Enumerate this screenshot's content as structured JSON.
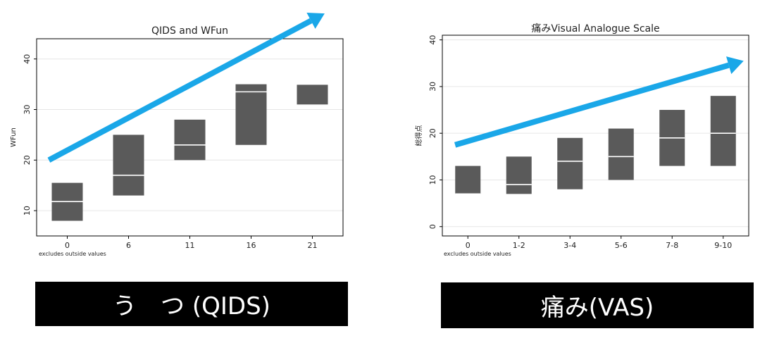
{
  "colors": {
    "box": "#5a5a5a",
    "median": "#ffffff",
    "arrow": "#1aa7e8",
    "plot_border": "#000000",
    "grid": "#e6e6e6",
    "banner_bg": "#000000",
    "banner_text": "#ffffff"
  },
  "chart_data": [
    {
      "type": "box",
      "title": "QIDS and WFun",
      "ylabel": "WFun",
      "xlabel": "",
      "note": "excludes outside values",
      "ylim": [
        5,
        44
      ],
      "yticks": [
        10,
        20,
        30,
        40
      ],
      "grid": true,
      "categories": [
        "0",
        "6",
        "11",
        "16",
        "21"
      ],
      "boxes": [
        {
          "q1": 8,
          "median": 11.8,
          "q3": 15.5
        },
        {
          "q1": 13,
          "median": 17,
          "q3": 25
        },
        {
          "q1": 20,
          "median": 23,
          "q3": 28
        },
        {
          "q1": 23,
          "median": 33.5,
          "q3": 35
        },
        {
          "q1": 31,
          "median": 35,
          "q3": 35
        }
      ],
      "trend_arrow": {
        "from": [
          -0.3,
          20
        ],
        "to": [
          4.2,
          49
        ]
      }
    },
    {
      "type": "box",
      "title": "痛みVisual Analogue Scale",
      "ylabel": "総得点",
      "xlabel": "",
      "note": "excludes outside values",
      "ylim": [
        -2,
        41
      ],
      "yticks": [
        0,
        10,
        20,
        30,
        40
      ],
      "grid": true,
      "categories": [
        "0",
        "1-2",
        "3-4",
        "5-6",
        "7-8",
        "9-10"
      ],
      "boxes": [
        {
          "q1": 7,
          "median": 7,
          "q3": 13
        },
        {
          "q1": 7,
          "median": 9,
          "q3": 15
        },
        {
          "q1": 8,
          "median": 14,
          "q3": 19
        },
        {
          "q1": 10,
          "median": 15,
          "q3": 21
        },
        {
          "q1": 13,
          "median": 19,
          "q3": 25
        },
        {
          "q1": 13,
          "median": 20,
          "q3": 28
        }
      ],
      "trend_arrow": {
        "from": [
          -0.25,
          17.5
        ],
        "to": [
          5.4,
          35.5
        ]
      }
    }
  ],
  "banners": {
    "left": "う　つ (QIDS)",
    "right": "痛み(VAS)"
  }
}
